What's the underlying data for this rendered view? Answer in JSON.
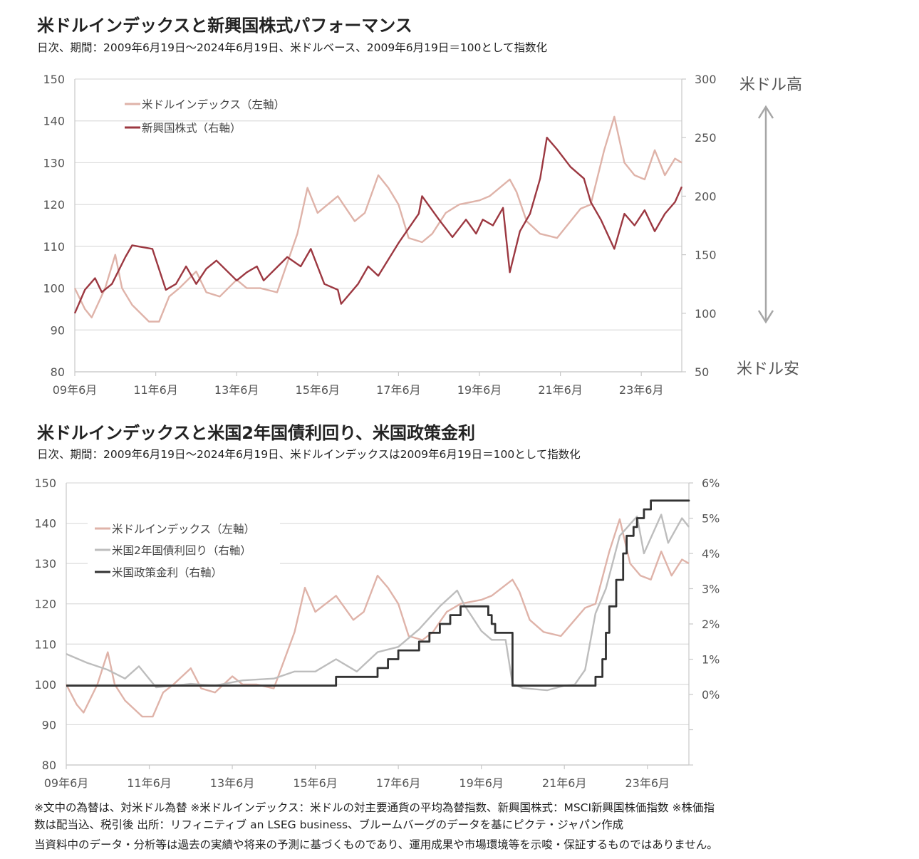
{
  "colors": {
    "usd_index": "#dfb3a9",
    "em_equity": "#9c3841",
    "us2y": "#bdbdbd",
    "policy_rate": "#333333"
  },
  "footer": {
    "line1": "※文中の為替は、対米ドル為替 ※米ドルインデックス：米ドルの対主要通貨の平均為替指数、新興国株式：MSCI新興国株価指数 ※株価指",
    "line2": "数は配当込、税引後 出所：リフィニティブ an LSEG business、ブルームバーグのデータを基にピクテ・ジャパン作成",
    "line3": "当資料中のデータ・分析等は過去の実績や将来の予測に基づくものであり、運用成果や市場環境等を示唆・保証するものではありません。"
  },
  "chart_data": [
    {
      "type": "line",
      "title": "米ドルインデックスと新興国株式パフォーマンス",
      "subtitle": "日次、期間：2009年6月19日～2024年6月19日、米ドルベース、2009年6月19日＝100として指数化",
      "x_range": [
        "2009-06",
        "2024-06"
      ],
      "x_ticks": [
        "09年6月",
        "11年6月",
        "13年6月",
        "15年6月",
        "17年6月",
        "19年6月",
        "21年6月",
        "23年6月"
      ],
      "y_left": {
        "range": [
          80,
          150
        ],
        "ticks": [
          "80",
          "90",
          "100",
          "110",
          "120",
          "130",
          "140",
          "150"
        ]
      },
      "y_right": {
        "range": [
          50,
          300
        ],
        "ticks": [
          "50",
          "100",
          "150",
          "200",
          "250",
          "300"
        ]
      },
      "annotations": {
        "top": "米ドル高",
        "bottom": "米ドル安"
      },
      "grid": true,
      "legend_position": "top-left",
      "series": [
        {
          "name": "米ドルインデックス（左軸）",
          "axis": "left",
          "color_key": "usd_index",
          "points": [
            [
              "2009-06",
              100
            ],
            [
              "2009-09",
              95
            ],
            [
              "2009-11",
              93
            ],
            [
              "2010-03",
              100
            ],
            [
              "2010-06",
              108
            ],
            [
              "2010-08",
              100
            ],
            [
              "2010-11",
              96
            ],
            [
              "2011-04",
              92
            ],
            [
              "2011-07",
              92
            ],
            [
              "2011-10",
              98
            ],
            [
              "2012-01",
              100
            ],
            [
              "2012-06",
              104
            ],
            [
              "2012-09",
              99
            ],
            [
              "2013-01",
              98
            ],
            [
              "2013-06",
              102
            ],
            [
              "2013-09",
              100
            ],
            [
              "2014-01",
              100
            ],
            [
              "2014-06",
              99
            ],
            [
              "2014-09",
              106
            ],
            [
              "2014-12",
              113
            ],
            [
              "2015-03",
              124
            ],
            [
              "2015-06",
              118
            ],
            [
              "2015-09",
              120
            ],
            [
              "2015-12",
              122
            ],
            [
              "2016-05",
              116
            ],
            [
              "2016-08",
              118
            ],
            [
              "2016-12",
              127
            ],
            [
              "2017-03",
              124
            ],
            [
              "2017-06",
              120
            ],
            [
              "2017-09",
              112
            ],
            [
              "2018-01",
              111
            ],
            [
              "2018-04",
              113
            ],
            [
              "2018-08",
              118
            ],
            [
              "2018-12",
              120
            ],
            [
              "2019-06",
              121
            ],
            [
              "2019-09",
              122
            ],
            [
              "2020-03",
              126
            ],
            [
              "2020-05",
              123
            ],
            [
              "2020-08",
              116
            ],
            [
              "2020-12",
              113
            ],
            [
              "2021-05",
              112
            ],
            [
              "2021-09",
              116
            ],
            [
              "2021-12",
              119
            ],
            [
              "2022-03",
              120
            ],
            [
              "2022-07",
              133
            ],
            [
              "2022-10",
              141
            ],
            [
              "2023-01",
              130
            ],
            [
              "2023-04",
              127
            ],
            [
              "2023-07",
              126
            ],
            [
              "2023-10",
              133
            ],
            [
              "2024-01",
              127
            ],
            [
              "2024-04",
              131
            ],
            [
              "2024-06",
              130
            ]
          ]
        },
        {
          "name": "新興国株式（右軸）",
          "axis": "right",
          "color_key": "em_equity",
          "points": [
            [
              "2009-06",
              100
            ],
            [
              "2009-09",
              120
            ],
            [
              "2009-12",
              130
            ],
            [
              "2010-02",
              118
            ],
            [
              "2010-05",
              125
            ],
            [
              "2010-09",
              148
            ],
            [
              "2010-11",
              158
            ],
            [
              "2011-05",
              155
            ],
            [
              "2011-09",
              120
            ],
            [
              "2011-12",
              125
            ],
            [
              "2012-03",
              140
            ],
            [
              "2012-06",
              125
            ],
            [
              "2012-09",
              138
            ],
            [
              "2012-12",
              145
            ],
            [
              "2013-06",
              128
            ],
            [
              "2013-09",
              135
            ],
            [
              "2013-12",
              140
            ],
            [
              "2014-02",
              128
            ],
            [
              "2014-09",
              148
            ],
            [
              "2015-01",
              140
            ],
            [
              "2015-04",
              155
            ],
            [
              "2015-08",
              125
            ],
            [
              "2015-12",
              120
            ],
            [
              "2016-01",
              108
            ],
            [
              "2016-06",
              125
            ],
            [
              "2016-09",
              140
            ],
            [
              "2016-12",
              132
            ],
            [
              "2017-06",
              160
            ],
            [
              "2017-12",
              185
            ],
            [
              "2018-01",
              200
            ],
            [
              "2018-06",
              180
            ],
            [
              "2018-10",
              165
            ],
            [
              "2019-02",
              180
            ],
            [
              "2019-05",
              168
            ],
            [
              "2019-07",
              180
            ],
            [
              "2019-10",
              175
            ],
            [
              "2020-01",
              190
            ],
            [
              "2020-03",
              135
            ],
            [
              "2020-06",
              170
            ],
            [
              "2020-09",
              185
            ],
            [
              "2020-12",
              215
            ],
            [
              "2021-02",
              250
            ],
            [
              "2021-05",
              240
            ],
            [
              "2021-09",
              225
            ],
            [
              "2022-01",
              215
            ],
            [
              "2022-03",
              195
            ],
            [
              "2022-06",
              180
            ],
            [
              "2022-10",
              155
            ],
            [
              "2023-01",
              185
            ],
            [
              "2023-04",
              175
            ],
            [
              "2023-07",
              188
            ],
            [
              "2023-10",
              170
            ],
            [
              "2024-01",
              185
            ],
            [
              "2024-04",
              195
            ],
            [
              "2024-06",
              208
            ]
          ]
        }
      ]
    },
    {
      "type": "line",
      "title": "米ドルインデックスと米国2年国債利回り、米国政策金利",
      "subtitle": "日次、期間：2009年6月19日～2024年6月19日、米ドルインデックスは2009年6月19日＝100として指数化",
      "x_range": [
        "2009-06",
        "2024-06"
      ],
      "x_ticks": [
        "09年6月",
        "11年6月",
        "13年6月",
        "15年6月",
        "17年6月",
        "19年6月",
        "21年6月",
        "23年6月"
      ],
      "y_left": {
        "range": [
          80,
          150
        ],
        "ticks": [
          "80",
          "90",
          "100",
          "110",
          "120",
          "130",
          "140",
          "150"
        ]
      },
      "y_right": {
        "range": [
          -2,
          6
        ],
        "ticks": [
          "0%",
          "1%",
          "2%",
          "3%",
          "4%",
          "5%",
          "6%"
        ]
      },
      "grid": true,
      "legend_position": "top-left",
      "series": [
        {
          "name": "米ドルインデックス（左軸）",
          "axis": "left",
          "color_key": "usd_index",
          "points": [
            [
              "2009-06",
              100
            ],
            [
              "2009-09",
              95
            ],
            [
              "2009-11",
              93
            ],
            [
              "2010-03",
              100
            ],
            [
              "2010-06",
              108
            ],
            [
              "2010-08",
              100
            ],
            [
              "2010-11",
              96
            ],
            [
              "2011-04",
              92
            ],
            [
              "2011-07",
              92
            ],
            [
              "2011-10",
              98
            ],
            [
              "2012-01",
              100
            ],
            [
              "2012-06",
              104
            ],
            [
              "2012-09",
              99
            ],
            [
              "2013-01",
              98
            ],
            [
              "2013-06",
              102
            ],
            [
              "2013-09",
              100
            ],
            [
              "2014-01",
              100
            ],
            [
              "2014-06",
              99
            ],
            [
              "2014-09",
              106
            ],
            [
              "2014-12",
              113
            ],
            [
              "2015-03",
              124
            ],
            [
              "2015-06",
              118
            ],
            [
              "2015-09",
              120
            ],
            [
              "2015-12",
              122
            ],
            [
              "2016-05",
              116
            ],
            [
              "2016-08",
              118
            ],
            [
              "2016-12",
              127
            ],
            [
              "2017-03",
              124
            ],
            [
              "2017-06",
              120
            ],
            [
              "2017-09",
              112
            ],
            [
              "2018-01",
              111
            ],
            [
              "2018-04",
              113
            ],
            [
              "2018-08",
              118
            ],
            [
              "2018-12",
              120
            ],
            [
              "2019-06",
              121
            ],
            [
              "2019-09",
              122
            ],
            [
              "2020-03",
              126
            ],
            [
              "2020-05",
              123
            ],
            [
              "2020-08",
              116
            ],
            [
              "2020-12",
              113
            ],
            [
              "2021-05",
              112
            ],
            [
              "2021-09",
              116
            ],
            [
              "2021-12",
              119
            ],
            [
              "2022-03",
              120
            ],
            [
              "2022-07",
              133
            ],
            [
              "2022-10",
              141
            ],
            [
              "2023-01",
              130
            ],
            [
              "2023-04",
              127
            ],
            [
              "2023-07",
              126
            ],
            [
              "2023-10",
              133
            ],
            [
              "2024-01",
              127
            ],
            [
              "2024-04",
              131
            ],
            [
              "2024-06",
              130
            ]
          ]
        },
        {
          "name": "米国2年国債利回り（右軸）",
          "axis": "right",
          "color_key": "us2y",
          "points": [
            [
              "2009-06",
              1.15
            ],
            [
              "2009-12",
              0.9
            ],
            [
              "2010-06",
              0.7
            ],
            [
              "2010-11",
              0.45
            ],
            [
              "2011-03",
              0.8
            ],
            [
              "2011-08",
              0.2
            ],
            [
              "2012-06",
              0.3
            ],
            [
              "2013-01",
              0.25
            ],
            [
              "2013-09",
              0.4
            ],
            [
              "2014-06",
              0.45
            ],
            [
              "2014-12",
              0.65
            ],
            [
              "2015-06",
              0.65
            ],
            [
              "2015-12",
              1.0
            ],
            [
              "2016-06",
              0.65
            ],
            [
              "2016-12",
              1.2
            ],
            [
              "2017-06",
              1.35
            ],
            [
              "2017-12",
              1.85
            ],
            [
              "2018-06",
              2.5
            ],
            [
              "2018-11",
              2.95
            ],
            [
              "2019-01",
              2.55
            ],
            [
              "2019-06",
              1.8
            ],
            [
              "2019-09",
              1.55
            ],
            [
              "2020-01",
              1.55
            ],
            [
              "2020-03",
              0.3
            ],
            [
              "2020-06",
              0.18
            ],
            [
              "2021-01",
              0.12
            ],
            [
              "2021-06",
              0.25
            ],
            [
              "2021-09",
              0.28
            ],
            [
              "2021-12",
              0.7
            ],
            [
              "2022-03",
              2.3
            ],
            [
              "2022-06",
              3.0
            ],
            [
              "2022-10",
              4.5
            ],
            [
              "2023-03",
              5.05
            ],
            [
              "2023-05",
              4.0
            ],
            [
              "2023-10",
              5.1
            ],
            [
              "2023-12",
              4.3
            ],
            [
              "2024-04",
              5.0
            ],
            [
              "2024-06",
              4.75
            ]
          ]
        },
        {
          "name": "米国政策金利（右軸）",
          "axis": "right",
          "color_key": "policy_rate",
          "step": true,
          "points": [
            [
              "2009-06",
              0.25
            ],
            [
              "2015-12",
              0.5
            ],
            [
              "2016-12",
              0.75
            ],
            [
              "2017-03",
              1.0
            ],
            [
              "2017-06",
              1.25
            ],
            [
              "2017-12",
              1.5
            ],
            [
              "2018-03",
              1.75
            ],
            [
              "2018-06",
              2.0
            ],
            [
              "2018-09",
              2.25
            ],
            [
              "2018-12",
              2.5
            ],
            [
              "2019-08",
              2.25
            ],
            [
              "2019-09",
              2.0
            ],
            [
              "2019-10",
              1.75
            ],
            [
              "2020-03",
              0.25
            ],
            [
              "2022-03",
              0.5
            ],
            [
              "2022-05",
              1.0
            ],
            [
              "2022-06",
              1.75
            ],
            [
              "2022-07",
              2.5
            ],
            [
              "2022-09",
              3.25
            ],
            [
              "2022-11",
              4.0
            ],
            [
              "2022-12",
              4.5
            ],
            [
              "2023-02",
              4.75
            ],
            [
              "2023-03",
              5.0
            ],
            [
              "2023-05",
              5.25
            ],
            [
              "2023-07",
              5.5
            ],
            [
              "2024-06",
              5.5
            ]
          ]
        }
      ]
    }
  ]
}
